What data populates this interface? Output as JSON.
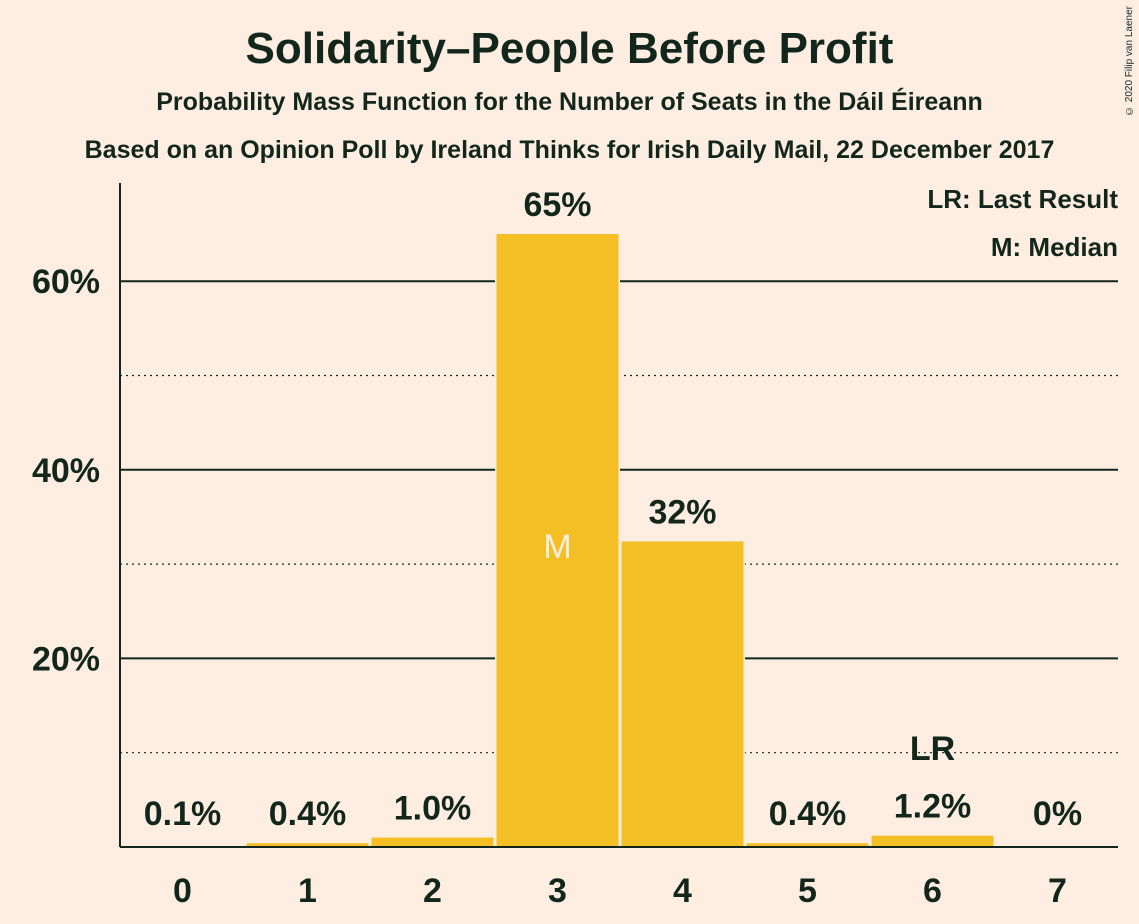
{
  "header": {
    "title": "Solidarity–People Before Profit",
    "subtitle": "Probability Mass Function for the Number of Seats in the Dáil Éireann",
    "source": "Based on an Opinion Poll by Ireland Thinks for Irish Daily Mail, 22 December 2017",
    "copyright": "© 2020 Filip van Laenen"
  },
  "legend": {
    "last_result": "LR: Last Result",
    "median": "M: Median"
  },
  "chart_data": {
    "type": "bar",
    "categories": [
      "0",
      "1",
      "2",
      "3",
      "4",
      "5",
      "6",
      "7"
    ],
    "values": [
      0.1,
      0.4,
      1.0,
      65,
      32.4,
      0.4,
      1.2,
      0
    ],
    "data_labels": [
      "0.1%",
      "0.4%",
      "1.0%",
      "65%",
      "32%",
      "0.4%",
      "1.2%",
      "0%"
    ],
    "ylim": [
      0,
      70
    ],
    "y_ticks": [
      {
        "value": 20,
        "label": "20%"
      },
      {
        "value": 40,
        "label": "40%"
      },
      {
        "value": 60,
        "label": "60%"
      }
    ],
    "y_minor_gridlines": [
      10,
      30,
      50
    ],
    "median_seat": "3",
    "median_marker": "M",
    "last_result_seat": "6",
    "last_result_marker": "LR",
    "colors": {
      "bar": "#F3BF24",
      "background": "#FEEEE2",
      "text": "#13261B",
      "median_text": "#FEEEE2"
    }
  }
}
